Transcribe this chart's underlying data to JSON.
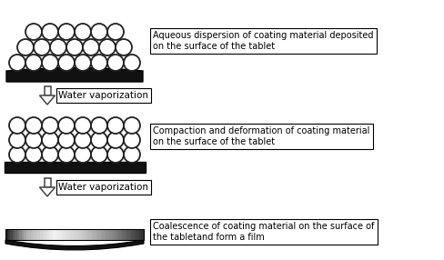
{
  "fig_width": 4.88,
  "fig_height": 2.86,
  "dpi": 100,
  "bg_color": "#ffffff",
  "step1_text": "Aqueous dispersion of coating material deposited\non the surface of the tablet",
  "step2_text": "Compaction and deformation of coating material\non the surface of the tablet",
  "step3_text": "Coalescence of coating material on the surface of\nthe tabletand form a film",
  "arrow1_text": "Water vaporization",
  "arrow2_text": "Water vaporization",
  "text_fontsize": 7.0,
  "arrow_fontsize": 7.5,
  "circle_color": "#ffffff",
  "circle_edge_color": "#222222",
  "tablet_color": "#111111",
  "tablet_lw": 1.0,
  "circle_lw": 1.3
}
